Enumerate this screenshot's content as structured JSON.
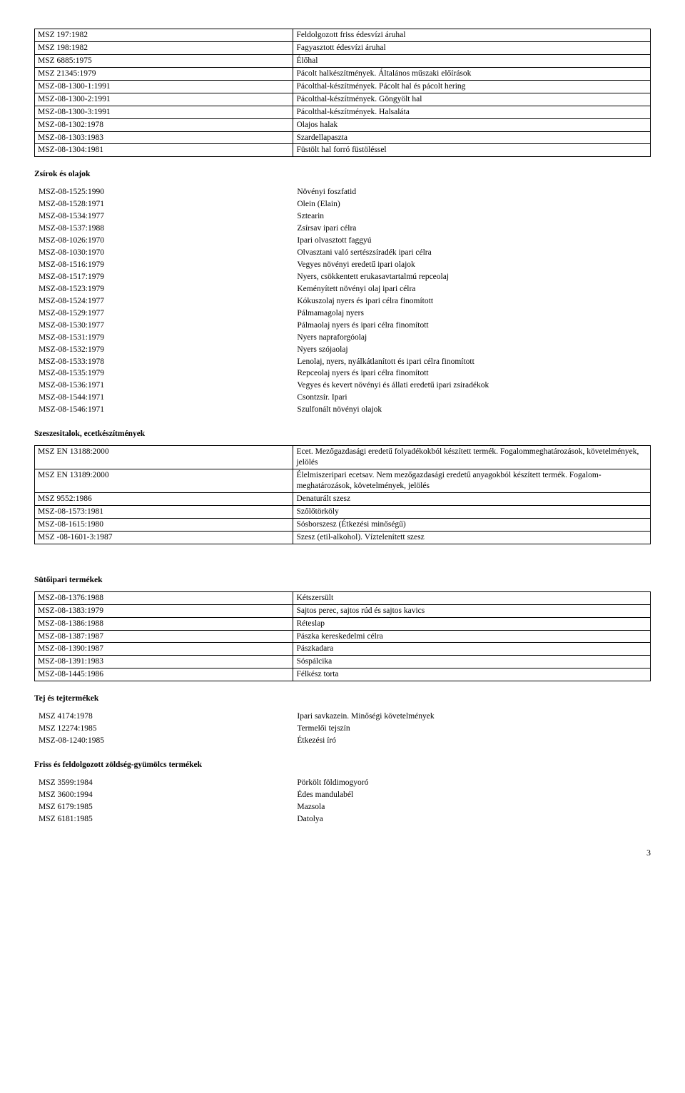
{
  "table1": {
    "rows": [
      [
        "MSZ 197:1982",
        "Feldolgozott friss édesvízi áruhal"
      ],
      [
        "MSZ 198:1982",
        "Fagyasztott édesvízi áruhal"
      ],
      [
        "MSZ 6885:1975",
        "Élőhal"
      ],
      [
        "MSZ 21345:1979",
        "Pácolt halkészítmények. Általános műszaki előírások"
      ],
      [
        "MSZ-08-1300-1:1991",
        "Pácolthal-készítmények. Pácolt hal és pácolt hering"
      ],
      [
        "MSZ-08-1300-2:1991",
        "Pácolthal-készítmények. Göngyölt hal"
      ],
      [
        "MSZ-08-1300-3:1991",
        "Pácolthal-készítmények. Halsaláta"
      ],
      [
        "MSZ-08-1302:1978",
        "Olajos halak"
      ],
      [
        "MSZ-08-1303:1983",
        "Szardellapaszta"
      ],
      [
        "MSZ-08-1304:1981",
        "Füstölt hal forró füstöléssel"
      ]
    ]
  },
  "section_zsirok": "Zsírok és olajok",
  "table2": {
    "rows": [
      [
        "MSZ-08-1525:1990",
        "Növényi foszfatid"
      ],
      [
        "MSZ-08-1528:1971",
        "Olein (Elain)"
      ],
      [
        "MSZ-08-1534:1977",
        "Sztearin"
      ],
      [
        "MSZ-08-1537:1988",
        "Zsírsav ipari célra"
      ],
      [
        "MSZ-08-1026:1970",
        "Ipari olvasztott faggyú"
      ],
      [
        "MSZ-08-1030:1970",
        "Olvasztani való sertészsíradék ipari célra"
      ],
      [
        "MSZ-08-1516:1979",
        "Vegyes növényi eredetű ipari olajok"
      ],
      [
        "MSZ-08-1517:1979",
        "Nyers, csökkentett erukasavtartalmú repceolaj"
      ],
      [
        "MSZ-08-1523:1979",
        "Keményített növényi olaj ipari célra"
      ],
      [
        "MSZ-08-1524:1977",
        "Kókuszolaj nyers és ipari célra finomított"
      ],
      [
        "MSZ-08-1529:1977",
        "Pálmamagolaj nyers"
      ],
      [
        "MSZ-08-1530:1977",
        "Pálmaolaj nyers és ipari célra finomított"
      ],
      [
        "MSZ-08-1531:1979",
        "Nyers napraforgóolaj"
      ],
      [
        "MSZ-08-1532:1979",
        "Nyers szójaolaj"
      ],
      [
        "MSZ-08-1533:1978",
        "Lenolaj, nyers, nyálkátlanított és ipari célra finomított"
      ],
      [
        "MSZ-08-1535:1979",
        "Repceolaj nyers és ipari célra finomított"
      ],
      [
        "MSZ-08-1536:1971",
        "Vegyes és kevert növényi és állati eredetű ipari zsiradékok"
      ],
      [
        "MSZ-08-1544:1971",
        "Csontzsír. Ipari"
      ],
      [
        "MSZ-08-1546:1971",
        "Szulfonált növényi olajok"
      ]
    ]
  },
  "section_szeszes": "Szeszesitalok, ecetkészítmények",
  "table3": {
    "rows": [
      [
        "MSZ EN 13188:2000",
        "Ecet. Mezőgazdasági eredetű folyadékokból készített termék. Fogalommeghatározások, követelmények, jelölés"
      ],
      [
        "MSZ EN 13189:2000",
        "Élelmiszeripari ecetsav. Nem mezőgazdasági eredetű anyagokból készített termék. Fogalom-meghatározások, követelmények, jelölés"
      ],
      [
        "MSZ 9552:1986",
        "Denaturált szesz"
      ],
      [
        "MSZ-08-1573:1981",
        "Szőlőtörköly"
      ],
      [
        "MSZ-08-1615:1980",
        "Sósborszesz (Étkezési minőségű)"
      ],
      [
        "MSZ -08-1601-3:1987",
        "Szesz (etil-alkohol). Víztelenített szesz"
      ]
    ]
  },
  "section_sutoipari": "Sütőipari termékek",
  "table4": {
    "rows": [
      [
        "MSZ-08-1376:1988",
        "Kétszersült"
      ],
      [
        "MSZ-08-1383:1979",
        "Sajtos perec, sajtos rúd és sajtos kavics"
      ],
      [
        "MSZ-08-1386:1988",
        "Réteslap"
      ],
      [
        "MSZ-08-1387:1987",
        "Pászka kereskedelmi célra"
      ],
      [
        "MSZ-08-1390:1987",
        "Pászkadara"
      ],
      [
        "MSZ-08-1391:1983",
        "Sóspálcika"
      ],
      [
        "MSZ-08-1445:1986",
        "Félkész torta"
      ]
    ]
  },
  "section_tej": "Tej és tejtermékek",
  "table5": {
    "rows": [
      [
        "MSZ 4174:1978",
        "Ipari savkazein. Minőségi követelmények"
      ],
      [
        "MSZ 12274:1985",
        "Termelői tejszín"
      ],
      [
        "MSZ-08-1240:1985",
        "Étkezési író"
      ]
    ]
  },
  "section_friss": "Friss és feldolgozott zöldség-gyümölcs termékek",
  "table6": {
    "rows": [
      [
        "MSZ 3599:1984",
        "Pörkölt földimogyoró"
      ],
      [
        "MSZ 3600:1994",
        "Édes mandulabél"
      ],
      [
        "MSZ 6179:1985",
        "Mazsola"
      ],
      [
        "MSZ 6181:1985",
        "Datolya"
      ]
    ]
  },
  "pagenum": "3"
}
